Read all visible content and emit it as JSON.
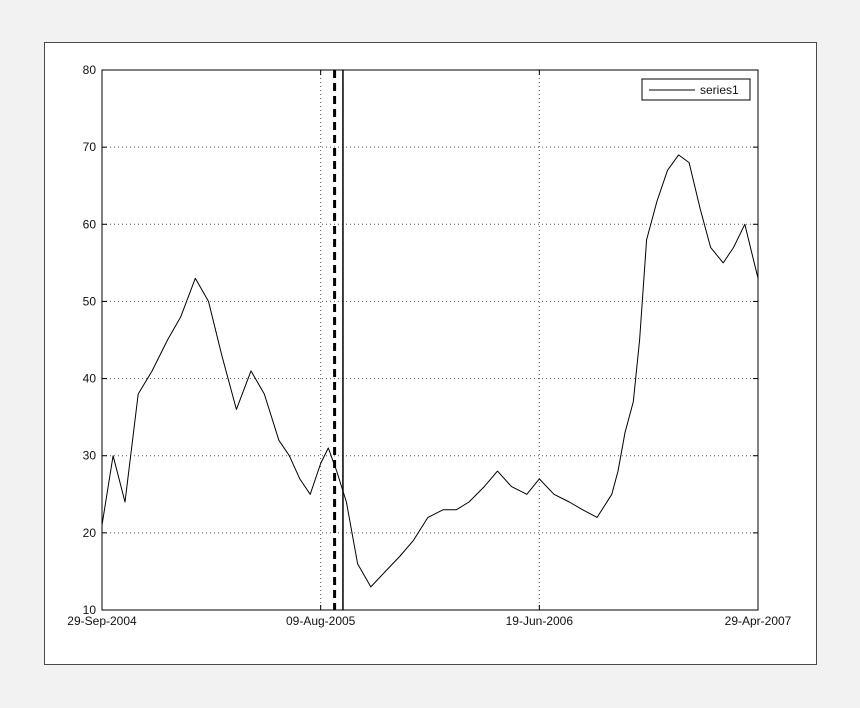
{
  "chart_data": {
    "type": "line",
    "title": "",
    "xlabel": "",
    "ylabel": "",
    "x_tick_labels": [
      "29-Sep-2004",
      "09-Aug-2005",
      "19-Jun-2006",
      "29-Apr-2007"
    ],
    "x_range": [
      "2004-09-29",
      "2007-04-29"
    ],
    "ylim": [
      10,
      80
    ],
    "y_ticks": [
      10,
      20,
      30,
      40,
      50,
      60,
      70,
      80
    ],
    "grid": true,
    "legend_position": "top-right",
    "vertical_markers": [
      {
        "x": "2005-08-29",
        "style": "dashed"
      },
      {
        "x": "2005-09-10",
        "style": "solid"
      }
    ],
    "series": [
      {
        "name": "series1",
        "color": "#000000",
        "x": [
          "2004-09-29",
          "2004-10-15",
          "2004-11-01",
          "2004-11-20",
          "2004-12-10",
          "2005-01-01",
          "2005-01-20",
          "2005-02-10",
          "2005-03-01",
          "2005-03-20",
          "2005-04-10",
          "2005-05-01",
          "2005-05-20",
          "2005-06-10",
          "2005-06-25",
          "2005-07-10",
          "2005-07-25",
          "2005-08-09",
          "2005-08-20",
          "2005-09-01",
          "2005-09-15",
          "2005-10-01",
          "2005-10-20",
          "2005-11-10",
          "2005-12-01",
          "2005-12-20",
          "2006-01-10",
          "2006-02-01",
          "2006-02-20",
          "2006-03-10",
          "2006-04-01",
          "2006-04-20",
          "2006-05-10",
          "2006-06-01",
          "2006-06-19",
          "2006-07-10",
          "2006-08-01",
          "2006-08-20",
          "2006-09-10",
          "2006-10-01",
          "2006-10-10",
          "2006-10-20",
          "2006-11-01",
          "2006-11-10",
          "2006-11-20",
          "2006-12-05",
          "2006-12-20",
          "2007-01-05",
          "2007-01-20",
          "2007-02-05",
          "2007-02-20",
          "2007-03-10",
          "2007-03-25",
          "2007-04-10",
          "2007-04-29"
        ],
        "y": [
          21,
          30,
          24,
          38,
          41,
          45,
          48,
          53,
          50,
          43,
          36,
          41,
          38,
          32,
          30,
          27,
          25,
          29,
          31,
          28,
          24,
          16,
          13,
          15,
          17,
          19,
          22,
          23,
          23,
          24,
          26,
          28,
          26,
          25,
          27,
          25,
          24,
          23,
          22,
          25,
          28,
          33,
          37,
          45,
          58,
          63,
          67,
          69,
          68,
          62,
          57,
          55,
          57,
          60,
          53
        ]
      }
    ]
  }
}
